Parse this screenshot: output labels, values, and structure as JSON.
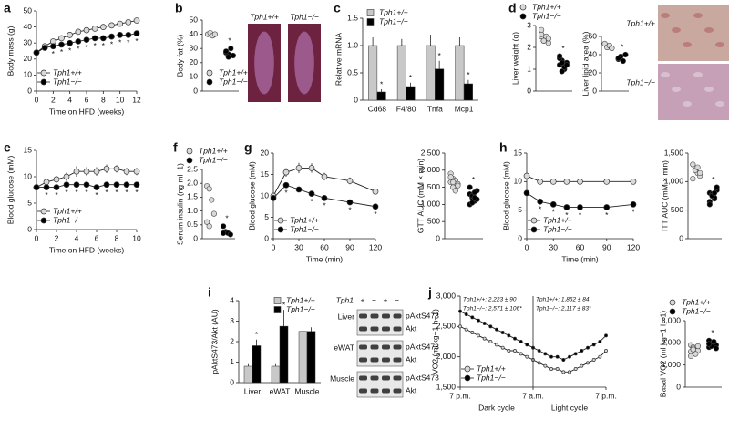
{
  "chart_data": [
    {
      "type": "line",
      "panel": "a",
      "ylabel": "Body mass (g)",
      "xlabel": "Time on HFD (weeks)",
      "x": [
        0,
        1,
        2,
        3,
        4,
        5,
        6,
        7,
        8,
        9,
        10,
        11,
        12
      ],
      "xlim": [
        0,
        12
      ],
      "xticks": [
        0,
        2,
        4,
        6,
        8,
        10,
        12
      ],
      "ylim": [
        0,
        50
      ],
      "yticks": [
        0,
        10,
        20,
        30,
        40,
        50
      ],
      "legend": "lower left",
      "sig_label": "*",
      "series": [
        {
          "name": "Tph1+/+",
          "color": "#d9d9d9",
          "values": [
            24,
            28,
            31,
            33,
            35,
            37,
            38,
            39,
            40,
            41,
            42,
            43,
            44
          ]
        },
        {
          "name": "Tph1−/−",
          "color": "#000000",
          "values": [
            24,
            27,
            28,
            29,
            30,
            31,
            32,
            33,
            33,
            34,
            35,
            35,
            36
          ],
          "sig": [
            2,
            3,
            4,
            5,
            6,
            7,
            8,
            9,
            10,
            11,
            12
          ]
        }
      ]
    },
    {
      "type": "dot",
      "panel": "b",
      "ylabel": "Body fat (%)",
      "ylim": [
        0,
        50
      ],
      "yticks": [
        0,
        10,
        20,
        30,
        40,
        50
      ],
      "legend": "lower left",
      "sig_label": "*",
      "image_labels": [
        "Tph1+/+",
        "Tph1−/−"
      ],
      "series": [
        {
          "name": "Tph1+/+",
          "color": "#d9d9d9",
          "values": [
            40,
            41,
            39,
            40
          ]
        },
        {
          "name": "Tph1−/−",
          "color": "#000000",
          "values": [
            27,
            26,
            30,
            25,
            28,
            24
          ],
          "sig": true
        }
      ]
    },
    {
      "type": "bar",
      "panel": "c",
      "ylabel": "Relative mRNA",
      "categories": [
        "Cd68",
        "F4/80",
        "Tnfa",
        "Mcp1"
      ],
      "ylim": [
        0,
        1.5
      ],
      "yticks": [
        0,
        0.5,
        {
          "value": 1,
          "label": "1.0"
        },
        {
          "value": 1.5,
          "label": "1.5"
        }
      ],
      "legend": "upper left",
      "sig_label": "*",
      "series": [
        {
          "name": "Tph1+/+",
          "color": "#c8c8c8",
          "values": [
            1,
            1,
            1,
            1
          ],
          "errors": [
            0.15,
            0.12,
            0.2,
            0.15
          ]
        },
        {
          "name": "Tph1−/−",
          "color": "#000000",
          "values": [
            0.15,
            0.25,
            0.57,
            0.3
          ],
          "errors": [
            0.05,
            0.07,
            0.15,
            0.07
          ],
          "sig": [
            0,
            1,
            2,
            3
          ]
        }
      ]
    },
    {
      "type": "dot",
      "panel": "d",
      "ylabel": "Liver weight (g)",
      "ylim": [
        0,
        3
      ],
      "yticks": [
        0,
        1,
        2,
        3
      ],
      "legend": "above",
      "sig_label": "*",
      "series": [
        {
          "name": "Tph1+/+",
          "color": "#d9d9d9",
          "values": [
            2.5,
            2.3,
            2.4,
            2.2,
            2.6,
            2.3,
            2.5,
            2.4,
            2.8,
            2.3
          ]
        },
        {
          "name": "Tph1−/−",
          "color": "#000000",
          "values": [
            1.2,
            1.4,
            1.0,
            1.3,
            1.5,
            0.9,
            1.1,
            1.2,
            1.6,
            1.3
          ],
          "sig": true
        }
      ]
    },
    {
      "type": "dot",
      "ylabel": "Liver lipid area (%)",
      "ylim": [
        0,
        60
      ],
      "yticks": [
        0,
        20,
        40,
        60
      ],
      "sig_label": "*",
      "image_labels": [
        "Tph1+/+",
        "Tph1−/−"
      ],
      "series": [
        {
          "name": "Tph1+/+",
          "color": "#d9d9d9",
          "values": [
            52,
            48,
            50,
            47
          ]
        },
        {
          "name": "Tph1−/−",
          "color": "#000000",
          "values": [
            35,
            38,
            33,
            40,
            36
          ],
          "sig": true
        }
      ]
    },
    {
      "type": "line",
      "panel": "e",
      "ylabel": "Blood glucose (mM)",
      "xlabel": "Time on HFD (weeks)",
      "x": [
        0,
        1,
        2,
        3,
        4,
        5,
        6,
        7,
        8,
        9,
        10
      ],
      "xlim": [
        0,
        10
      ],
      "xticks": [
        0,
        2,
        4,
        6,
        8,
        10
      ],
      "ylim": [
        0,
        15
      ],
      "yticks": [
        0,
        5,
        10,
        15
      ],
      "legend": "lower left",
      "sig_label": "*",
      "series": [
        {
          "name": "Tph1+/+",
          "color": "#d9d9d9",
          "values": [
            8,
            9,
            9.5,
            10,
            11,
            11,
            11,
            11.5,
            11.5,
            11,
            11
          ],
          "errors": [
            0.5,
            0.6,
            0.6,
            0.8,
            1,
            0.8,
            0.8,
            0.8,
            0.7,
            0.7,
            0.7
          ]
        },
        {
          "name": "Tph1−/−",
          "color": "#000000",
          "values": [
            8,
            8,
            8,
            8.5,
            8.5,
            8.5,
            8,
            8.5,
            8.5,
            8.5,
            8.5
          ],
          "sig": [
            1,
            2,
            3,
            4,
            5,
            6,
            7,
            8,
            9,
            10
          ]
        }
      ]
    },
    {
      "type": "dot",
      "panel": "f",
      "ylabel": "Serum insulin (ng ml−1)",
      "ylim": [
        0,
        2.5
      ],
      "yticks": [
        0,
        0.5,
        {
          "value": 1,
          "label": "1.0"
        },
        {
          "value": 1.5,
          "label": "1.5"
        },
        {
          "value": 2,
          "label": "2.0"
        },
        2.5
      ],
      "legend": "above",
      "sig_label": "*",
      "series": [
        {
          "name": "Tph1+/+",
          "color": "#d9d9d9",
          "values": [
            1.9,
            1.8,
            1.4,
            0.9,
            0.6,
            0.45
          ]
        },
        {
          "name": "Tph1−/−",
          "color": "#000000",
          "values": [
            0.45,
            0.25,
            0.2,
            0.15,
            0.2
          ],
          "sig": true
        }
      ]
    },
    {
      "type": "line",
      "panel": "g",
      "ylabel": "Blood glucose (mM)",
      "xlabel": "Time (min)",
      "x": [
        0,
        15,
        30,
        45,
        60,
        90,
        120
      ],
      "xlim": [
        0,
        120
      ],
      "xticks": [
        0,
        30,
        60,
        90,
        120
      ],
      "ylim": [
        0,
        20
      ],
      "yticks": [
        0,
        5,
        10,
        15,
        20
      ],
      "legend": "lower left",
      "sig_label": "*",
      "series": [
        {
          "name": "Tph1+/+",
          "color": "#d9d9d9",
          "values": [
            10,
            15.5,
            16.5,
            16.5,
            14.5,
            13.5,
            11
          ],
          "errors": [
            0.8,
            1,
            1.2,
            1.1,
            0.9,
            0.8,
            0.6
          ]
        },
        {
          "name": "Tph1−/−",
          "color": "#000000",
          "values": [
            9.5,
            12.5,
            11.5,
            10.5,
            9.5,
            8.5,
            7.5
          ],
          "errors": [
            0.6,
            0.6,
            0.6,
            0.5,
            0.4,
            0.4,
            0.4
          ],
          "sig": [
            1,
            3,
            4,
            5,
            6
          ]
        }
      ]
    },
    {
      "type": "dot",
      "ylabel": "GTT AUC (mM × min)",
      "ylim": [
        0,
        2500
      ],
      "yticks": [
        0,
        500,
        {
          "value": 1000,
          "label": "1,000"
        },
        {
          "value": 1500,
          "label": "1,500"
        },
        {
          "value": 2000,
          "label": "2,000"
        },
        {
          "value": 2500,
          "label": "2,500"
        }
      ],
      "sig_label": "*",
      "series": [
        {
          "name": "Tph1+/+",
          "color": "#d9d9d9",
          "values": [
            1900,
            1750,
            1700,
            1600,
            1650,
            1500,
            1400,
            1550,
            1800,
            1650
          ]
        },
        {
          "name": "Tph1−/−",
          "color": "#000000",
          "values": [
            1300,
            1200,
            1100,
            1400,
            1000,
            1250,
            1350,
            1150,
            1500,
            1050,
            1200
          ],
          "sig": true
        }
      ]
    },
    {
      "type": "line",
      "panel": "h",
      "ylabel": "Blood glucose (mM)",
      "xlabel": "Time (min)",
      "x": [
        0,
        15,
        30,
        45,
        60,
        90,
        120
      ],
      "xlim": [
        0,
        120
      ],
      "xticks": [
        0,
        30,
        60,
        90,
        120
      ],
      "ylim": [
        0,
        15
      ],
      "yticks": [
        0,
        5,
        10,
        15
      ],
      "legend": "lower left",
      "sig_label": "*",
      "series": [
        {
          "name": "Tph1+/+",
          "color": "#d9d9d9",
          "values": [
            11,
            10,
            10,
            10,
            10,
            10,
            10
          ],
          "errors": [
            0.7,
            0.5,
            0.4,
            0.4,
            0.4,
            0.4,
            0.4
          ]
        },
        {
          "name": "Tph1−/−",
          "color": "#000000",
          "values": [
            8,
            6.5,
            6,
            5.5,
            5.5,
            5.5,
            6
          ],
          "sig": [
            1,
            2,
            3,
            4,
            5,
            6
          ]
        }
      ]
    },
    {
      "type": "dot",
      "ylabel": "ITT AUC (mM × min)",
      "ylim": [
        0,
        1500
      ],
      "yticks": [
        0,
        500,
        {
          "value": 1000,
          "label": "1,000"
        },
        {
          "value": 1500,
          "label": "1,500"
        }
      ],
      "sig_label": "*",
      "series": [
        {
          "name": "Tph1+/+",
          "color": "#d9d9d9",
          "values": [
            1300,
            1200,
            1150,
            1100,
            1050,
            1200,
            1250,
            1150
          ]
        },
        {
          "name": "Tph1−/−",
          "color": "#000000",
          "values": [
            800,
            750,
            700,
            850,
            650,
            780,
            720,
            900,
            600,
            750,
            800
          ],
          "sig": true
        }
      ]
    },
    {
      "type": "bar",
      "panel": "i",
      "ylabel": "pAktS473/Akt (AU)",
      "categories": [
        "Liver",
        "eWAT",
        "Muscle"
      ],
      "ylim": [
        0,
        4
      ],
      "yticks": [
        0,
        1,
        2,
        3,
        4
      ],
      "legend": "upper right",
      "sig_label": "*",
      "series": [
        {
          "name": "Tph1+/+",
          "color": "#c8c8c8",
          "values": [
            0.8,
            0.8,
            2.5
          ],
          "errors": [
            0.1,
            0.1,
            0.2
          ]
        },
        {
          "name": "Tph1−/−",
          "color": "#000000",
          "values": [
            1.8,
            2.75,
            2.5
          ],
          "errors": [
            0.3,
            0.8,
            0.2
          ],
          "sig": [
            0,
            1
          ]
        }
      ],
      "blot": {
        "gene": "Tph1",
        "lanes": [
          "+",
          "−",
          "+",
          "−"
        ],
        "tissues": [
          "Liver",
          "eWAT",
          "Muscle"
        ],
        "bands": [
          "pAktS473",
          "Akt"
        ]
      }
    },
    {
      "type": "line",
      "panel": "j",
      "ylabel": "VO2 (ml kg−1 h−1)",
      "x": [
        0,
        1,
        2,
        3,
        4,
        5,
        6,
        7,
        8,
        9,
        10,
        11,
        12,
        13,
        14,
        15,
        16,
        17,
        18,
        19,
        20,
        21,
        22,
        23,
        24
      ],
      "xlim": [
        0,
        24
      ],
      "xticks": [
        {
          "value": 0,
          "label": "7 p.m."
        },
        {
          "value": 12,
          "label": "7 a.m."
        },
        {
          "value": 24,
          "label": "7 p.m."
        }
      ],
      "ylim": [
        1500,
        3000
      ],
      "yticks": [
        {
          "value": 1500,
          "label": "1,500"
        },
        {
          "value": 2000,
          "label": "2,000"
        },
        {
          "value": 2500,
          "label": "2,500"
        },
        {
          "value": 3000,
          "label": "3,000"
        }
      ],
      "legend": "lower left",
      "cycles": [
        "Dark cycle",
        "Light cycle"
      ],
      "annotations": [
        "Tph1+/+: 2,223 ± 90",
        "Tph1−/−: 2,571 ± 106*",
        "Tph1+/+: 1,862 ± 84",
        "Tph1−/−: 2,117 ± 83*"
      ],
      "series": [
        {
          "name": "Tph1+/+",
          "color": "#d9d9d9",
          "values": [
            2500,
            2450,
            2400,
            2350,
            2300,
            2250,
            2200,
            2150,
            2100,
            2100,
            2050,
            2000,
            1950,
            1900,
            1850,
            1800,
            1800,
            1750,
            1750,
            1800,
            1850,
            1900,
            1950,
            2000,
            2100
          ]
        },
        {
          "name": "Tph1−/−",
          "color": "#000000",
          "values": [
            2750,
            2700,
            2650,
            2600,
            2550,
            2500,
            2450,
            2400,
            2350,
            2300,
            2250,
            2200,
            2150,
            2100,
            2050,
            2000,
            2000,
            1950,
            2000,
            2050,
            2100,
            2150,
            2200,
            2250,
            2350
          ]
        }
      ]
    },
    {
      "type": "dot",
      "ylabel": "Basal VO2 (ml kg−1 h−1)",
      "ylim": [
        0,
        3000
      ],
      "yticks": [
        0,
        {
          "value": 1000,
          "label": "1,000"
        },
        {
          "value": 2000,
          "label": "2,000"
        },
        {
          "value": 3000,
          "label": "3,000"
        }
      ],
      "legend": "above",
      "sig_label": "*",
      "series": [
        {
          "name": "Tph1+/+",
          "color": "#d9d9d9",
          "values": [
            1900,
            1800,
            1700,
            1650,
            1600,
            1750,
            1500,
            1850,
            1400,
            1700
          ]
        },
        {
          "name": "Tph1−/−",
          "color": "#000000",
          "values": [
            2100,
            1950,
            2000,
            1900,
            1800,
            1850,
            2050,
            1750,
            1950
          ],
          "sig": true
        }
      ]
    }
  ]
}
